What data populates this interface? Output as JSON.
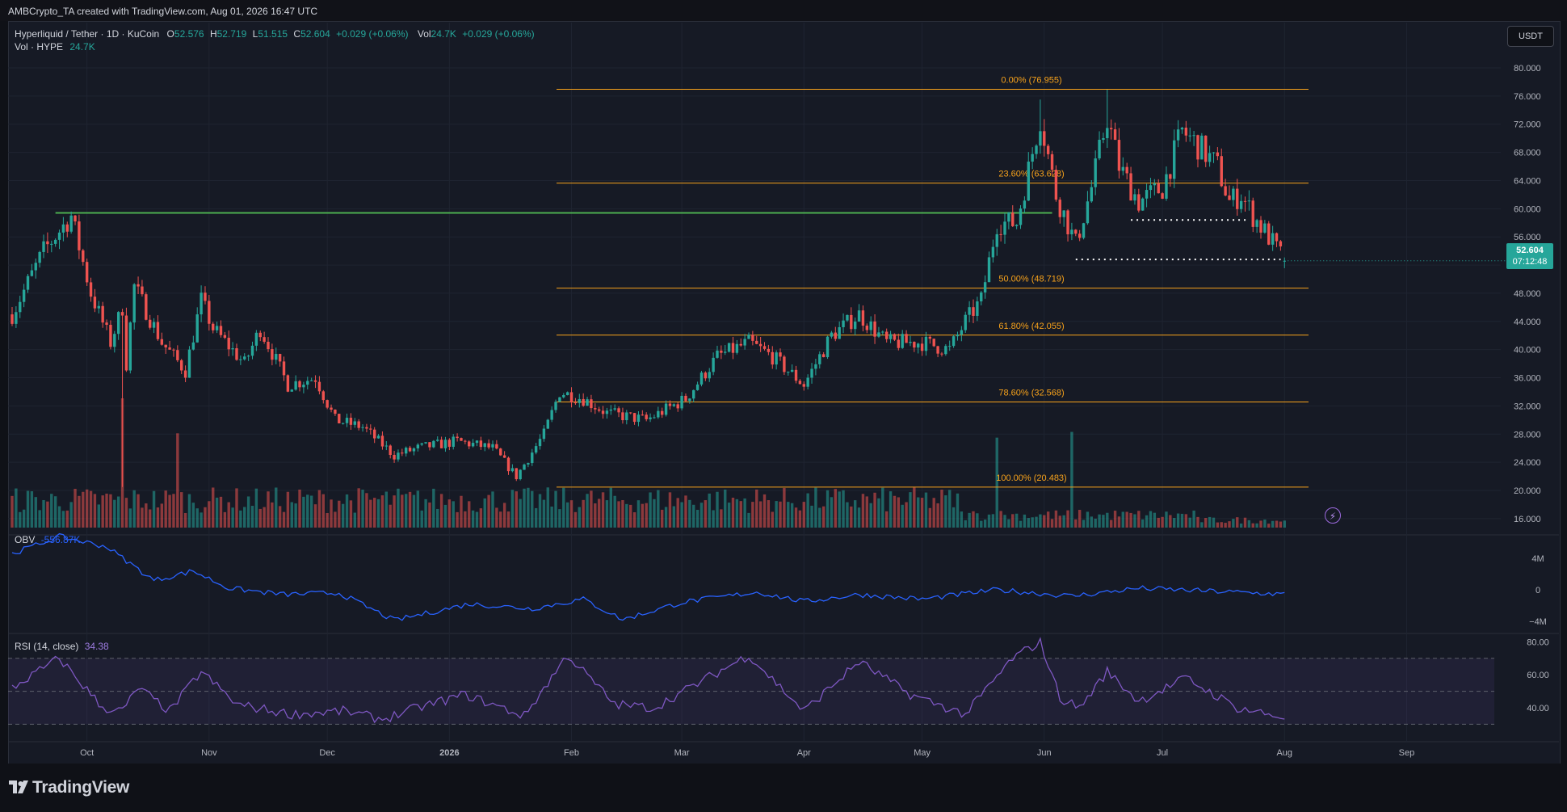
{
  "header": {
    "created_by": "AMBCrypto_TA created with TradingView.com, Aug 01, 2026 16:47 UTC"
  },
  "legend": {
    "symbol": "Hyperliquid / Tether · 1D · KuCoin",
    "open_label": "O",
    "open": "52.576",
    "high_label": "H",
    "high": "52.719",
    "low_label": "L",
    "low": "51.515",
    "close_label": "C",
    "close": "52.604",
    "change": "+0.029 (+0.06%)",
    "vol_label": "Vol",
    "vol": "24.7K",
    "vol_change": "+0.029 (+0.06%)",
    "vol_hype_label": "Vol · HYPE",
    "vol_hype": "24.7K"
  },
  "currency_badge": "USDT",
  "last_price": {
    "price": "52.604",
    "countdown": "07:12:48"
  },
  "obv": {
    "label": "OBV",
    "value": "-556.87K"
  },
  "rsi": {
    "label": "RSI (14, close)",
    "value": "34.38"
  },
  "brand": {
    "name": "TradingView"
  },
  "colors": {
    "up": "#26a69a",
    "down": "#ef5350",
    "fib": "#f7a21b",
    "resistance": "#4caf50",
    "obv": "#2962ff",
    "rsi": "#7e57c2",
    "background": "#161a25"
  },
  "chart_data": [
    {
      "type": "candlestick",
      "title": "Hyperliquid / Tether · 1D · KuCoin",
      "y_axis": {
        "ticks": [
          16,
          20,
          24,
          28,
          32,
          36,
          40,
          44,
          48,
          52,
          56,
          60,
          64,
          68,
          72,
          76,
          80
        ],
        "tick_labels": [
          "16.000",
          "20.000",
          "24.000",
          "28.000",
          "32.000",
          "36.000",
          "40.000",
          "44.000",
          "48.000",
          "",
          "56.000",
          "60.000",
          "64.000",
          "68.000",
          "72.000",
          "76.000",
          "80.000"
        ],
        "range": [
          14.5,
          81.6
        ]
      },
      "x_axis": {
        "labels": [
          "Oct",
          "Nov",
          "Dec",
          "2026",
          "Feb",
          "Mar",
          "Apr",
          "May",
          "Jun",
          "Jul",
          "Aug",
          "Sep"
        ]
      },
      "anchors": [
        [
          "2025-09-12",
          45
        ],
        [
          "2025-09-20",
          54
        ],
        [
          "2025-09-27",
          59
        ],
        [
          "2025-10-02",
          48
        ],
        [
          "2025-10-07",
          41
        ],
        [
          "2025-10-10",
          46
        ],
        [
          "2025-10-11",
          38
        ],
        [
          "2025-10-13",
          49
        ],
        [
          "2025-10-20",
          41
        ],
        [
          "2025-10-26",
          37
        ],
        [
          "2025-10-30",
          47
        ],
        [
          "2025-11-02",
          43
        ],
        [
          "2025-11-10",
          38
        ],
        [
          "2025-11-14",
          43
        ],
        [
          "2025-11-21",
          35
        ],
        [
          "2025-11-28",
          36
        ],
        [
          "2025-12-03",
          30
        ],
        [
          "2025-12-10",
          29
        ],
        [
          "2025-12-18",
          25
        ],
        [
          "2025-12-24",
          26
        ],
        [
          "2026-01-03",
          27
        ],
        [
          "2026-01-12",
          26
        ],
        [
          "2026-01-18",
          22
        ],
        [
          "2026-01-25",
          28
        ],
        [
          "2026-01-29",
          34
        ],
        [
          "2026-02-04",
          33
        ],
        [
          "2026-02-10",
          31
        ],
        [
          "2026-02-20",
          30
        ],
        [
          "2026-03-02",
          33
        ],
        [
          "2026-03-10",
          39
        ],
        [
          "2026-03-18",
          41
        ],
        [
          "2026-03-24",
          39
        ],
        [
          "2026-04-01",
          35
        ],
        [
          "2026-04-08",
          42
        ],
        [
          "2026-04-15",
          45
        ],
        [
          "2026-04-22",
          41
        ],
        [
          "2026-05-01",
          41
        ],
        [
          "2026-05-08",
          40
        ],
        [
          "2026-05-12",
          44
        ],
        [
          "2026-05-16",
          47
        ],
        [
          "2026-05-20",
          58
        ],
        [
          "2026-05-25",
          58
        ],
        [
          "2026-05-31",
          73
        ],
        [
          "2026-06-04",
          62
        ],
        [
          "2026-06-09",
          55
        ],
        [
          "2026-06-13",
          63
        ],
        [
          "2026-06-17",
          73
        ],
        [
          "2026-06-20",
          66
        ],
        [
          "2026-06-25",
          61
        ],
        [
          "2026-07-01",
          63
        ],
        [
          "2026-07-06",
          71
        ],
        [
          "2026-07-10",
          69
        ],
        [
          "2026-07-15",
          66
        ],
        [
          "2026-07-18",
          61
        ],
        [
          "2026-07-21",
          62
        ],
        [
          "2026-07-24",
          59
        ],
        [
          "2026-07-28",
          56
        ],
        [
          "2026-08-01",
          52.6
        ]
      ],
      "last_price": 52.604,
      "fibonacci": [
        {
          "label": "0.00% (76.955)",
          "level": 76.955
        },
        {
          "label": "23.60% (63.628)",
          "level": 63.628
        },
        {
          "label": "50.00% (48.719)",
          "level": 48.719
        },
        {
          "label": "61.80% (42.055)",
          "level": 42.055
        },
        {
          "label": "78.60% (32.568)",
          "level": 32.568
        },
        {
          "label": "100.00% (20.483)",
          "level": 20.483
        }
      ],
      "horizontal_lines": [
        {
          "kind": "resistance",
          "level": 59.4,
          "from": "2025-09-23",
          "to": "2026-06-03"
        },
        {
          "kind": "support-dotted",
          "level": 58.4,
          "from": "2026-06-23",
          "to": "2026-07-23"
        },
        {
          "kind": "support-dotted",
          "level": 52.8,
          "from": "2026-06-09",
          "to": "2026-07-31"
        }
      ],
      "volume_peaks": [
        [
          "2025-10-10",
          "max"
        ],
        [
          "2025-10-24",
          "high"
        ],
        [
          "2026-05-20",
          "high"
        ],
        [
          "2026-06-08",
          "high"
        ]
      ]
    },
    {
      "type": "line",
      "title": "OBV",
      "y_axis": {
        "ticks": [
          -4,
          0,
          4
        ],
        "tick_labels": [
          "−4M",
          "0",
          "4M"
        ]
      },
      "anchors": [
        [
          "2025-09-12",
          4.6
        ],
        [
          "2025-09-24",
          6.8
        ],
        [
          "2025-10-06",
          5.5
        ],
        [
          "2025-10-18",
          1.2
        ],
        [
          "2025-10-28",
          2.4
        ],
        [
          "2025-11-06",
          0.2
        ],
        [
          "2025-11-20",
          -0.6
        ],
        [
          "2025-12-04",
          -0.4
        ],
        [
          "2025-12-18",
          -3.9
        ],
        [
          "2026-01-06",
          -1.8
        ],
        [
          "2026-01-22",
          -2.4
        ],
        [
          "2026-02-04",
          -1.2
        ],
        [
          "2026-02-14",
          -3.8
        ],
        [
          "2026-03-01",
          -1.6
        ],
        [
          "2026-03-20",
          -0.3
        ],
        [
          "2026-04-01",
          -1.5
        ],
        [
          "2026-04-15",
          -0.6
        ],
        [
          "2026-05-01",
          -1.2
        ],
        [
          "2026-05-20",
          0.0
        ],
        [
          "2026-06-08",
          -0.8
        ],
        [
          "2026-06-25",
          0.2
        ],
        [
          "2026-08-01",
          -0.56
        ]
      ]
    },
    {
      "type": "line",
      "title": "RSI (14, close)",
      "y_axis": {
        "ticks": [
          40,
          60,
          80
        ],
        "tick_labels": [
          "40.00",
          "60.00",
          "80.00"
        ],
        "bands": [
          30,
          50,
          70
        ]
      },
      "anchors": [
        [
          "2025-09-12",
          52
        ],
        [
          "2025-09-24",
          70
        ],
        [
          "2025-10-05",
          40
        ],
        [
          "2025-10-10",
          38
        ],
        [
          "2025-10-14",
          52
        ],
        [
          "2025-10-22",
          38
        ],
        [
          "2025-10-30",
          62
        ],
        [
          "2025-11-08",
          42
        ],
        [
          "2025-11-22",
          36
        ],
        [
          "2025-12-05",
          38
        ],
        [
          "2025-12-15",
          33
        ],
        [
          "2025-12-24",
          40
        ],
        [
          "2026-01-05",
          48
        ],
        [
          "2026-01-20",
          35
        ],
        [
          "2026-01-31",
          72
        ],
        [
          "2026-02-12",
          42
        ],
        [
          "2026-02-22",
          40
        ],
        [
          "2026-03-18",
          72
        ],
        [
          "2026-04-01",
          38
        ],
        [
          "2026-04-15",
          68
        ],
        [
          "2026-04-28",
          48
        ],
        [
          "2026-05-12",
          36
        ],
        [
          "2026-05-24",
          70
        ],
        [
          "2026-05-31",
          80
        ],
        [
          "2026-06-05",
          46
        ],
        [
          "2026-06-10",
          40
        ],
        [
          "2026-06-17",
          62
        ],
        [
          "2026-06-25",
          44
        ],
        [
          "2026-07-07",
          58
        ],
        [
          "2026-07-20",
          40
        ],
        [
          "2026-07-28",
          36
        ],
        [
          "2026-08-01",
          34.38
        ]
      ]
    }
  ]
}
